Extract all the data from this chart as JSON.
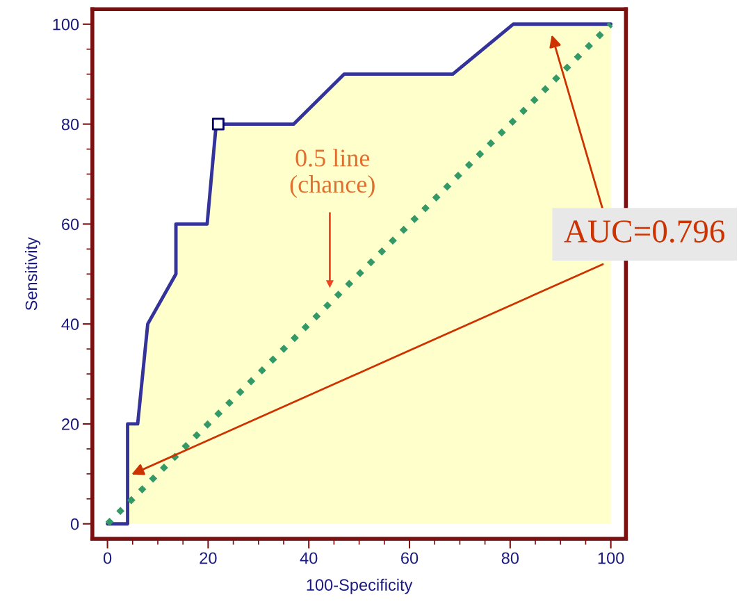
{
  "chart_data": {
    "type": "line",
    "xlabel": "100-Specificity",
    "ylabel": "Sensitivity",
    "xlim": [
      -3,
      103
    ],
    "ylim": [
      -3,
      103
    ],
    "xticks": [
      0,
      20,
      40,
      60,
      80,
      100
    ],
    "yticks": [
      0,
      20,
      40,
      60,
      80,
      100
    ],
    "grid": false,
    "legend": false,
    "series": [
      {
        "type": "area",
        "color": "#ffffcc",
        "x": [
          4,
          4,
          6,
          8,
          13.6,
          13.6,
          19.8,
          21.6,
          37,
          47,
          68.6,
          80.6,
          100
        ],
        "values": [
          0,
          20,
          20,
          40,
          50,
          60,
          60,
          80,
          80,
          90,
          90,
          100,
          100
        ]
      },
      {
        "color": "#333399",
        "x": [
          0,
          4,
          4,
          6,
          8,
          13.6,
          13.6,
          19.8,
          21.6,
          37,
          47,
          68.6,
          80.6,
          100
        ],
        "values": [
          0,
          0,
          20,
          20,
          40,
          50,
          60,
          60,
          80,
          80,
          90,
          90,
          100,
          100
        ]
      },
      {
        "type": "line",
        "color": "#339966",
        "line_style": "dotted",
        "x": [
          0,
          100
        ],
        "values": [
          0,
          100
        ]
      },
      {
        "type": "scatter",
        "color": "#000066",
        "marker": "square",
        "x": [
          22
        ],
        "values": [
          80
        ]
      }
    ],
    "annotations": [
      "0.5 line\n(chance)",
      "AUC=0.796"
    ]
  }
}
